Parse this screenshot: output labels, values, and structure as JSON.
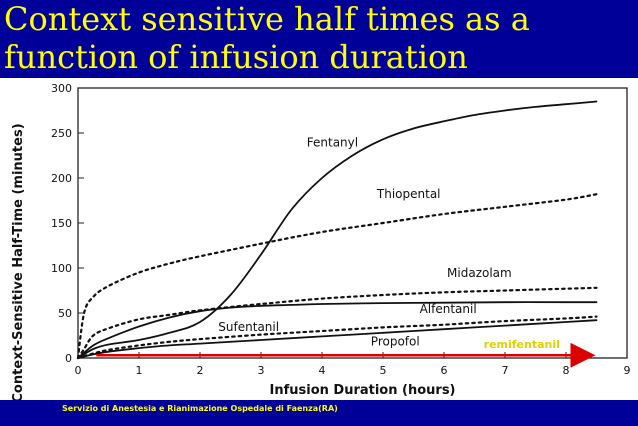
{
  "slide": {
    "title_line1": "Context sensitive half times as a",
    "title_line2": "function of infusion duration",
    "footer": "Servizio di Anestesia e Rianimazione Ospedale di Faenza(RA)",
    "colors": {
      "background": "#000099",
      "title": "#ffff00",
      "footer": "#ffff00",
      "arrow": "#dd0000"
    }
  },
  "chart_data": {
    "type": "line",
    "title": "",
    "xlabel": "Infusion Duration (hours)",
    "ylabel": "Context-Sensitive Half-Time (minutes)",
    "xlim": [
      0,
      9
    ],
    "ylim": [
      0,
      300
    ],
    "xticks": [
      0,
      1,
      2,
      3,
      4,
      5,
      6,
      7,
      8,
      9
    ],
    "yticks": [
      0,
      50,
      100,
      150,
      200,
      250,
      300
    ],
    "grid": false,
    "legend": "none",
    "series": [
      {
        "name": "Fentanyl",
        "style": "solid",
        "label_at": [
          3.75,
          235
        ],
        "points": [
          [
            0,
            0
          ],
          [
            0.25,
            10
          ],
          [
            0.5,
            15
          ],
          [
            1,
            20
          ],
          [
            1.5,
            28
          ],
          [
            2,
            40
          ],
          [
            2.5,
            70
          ],
          [
            3,
            115
          ],
          [
            3.5,
            165
          ],
          [
            4,
            200
          ],
          [
            4.5,
            225
          ],
          [
            5,
            243
          ],
          [
            5.5,
            255
          ],
          [
            6,
            263
          ],
          [
            6.5,
            270
          ],
          [
            7,
            275
          ],
          [
            7.5,
            279
          ],
          [
            8,
            282
          ],
          [
            8.5,
            285
          ]
        ]
      },
      {
        "name": "Thiopental",
        "style": "dotted",
        "label_at": [
          4.9,
          178
        ],
        "points": [
          [
            0,
            0
          ],
          [
            0.1,
            50
          ],
          [
            0.25,
            68
          ],
          [
            0.5,
            80
          ],
          [
            1,
            95
          ],
          [
            1.5,
            105
          ],
          [
            2,
            113
          ],
          [
            3,
            127
          ],
          [
            4,
            140
          ],
          [
            5,
            150
          ],
          [
            6,
            160
          ],
          [
            7,
            168
          ],
          [
            8,
            176
          ],
          [
            8.5,
            182
          ]
        ]
      },
      {
        "name": "Midazolam",
        "style": "dotted",
        "label_at": [
          6.05,
          90
        ],
        "points": [
          [
            0,
            0
          ],
          [
            0.1,
            10
          ],
          [
            0.25,
            25
          ],
          [
            0.5,
            33
          ],
          [
            1,
            43
          ],
          [
            1.5,
            48
          ],
          [
            2,
            53
          ],
          [
            3,
            60
          ],
          [
            4,
            66
          ],
          [
            5,
            70
          ],
          [
            6,
            73
          ],
          [
            7,
            75
          ],
          [
            8,
            77
          ],
          [
            8.5,
            78
          ]
        ]
      },
      {
        "name": "Alfentanil",
        "style": "solid",
        "label_at": [
          5.6,
          50
        ],
        "points": [
          [
            0,
            0
          ],
          [
            0.25,
            14
          ],
          [
            0.5,
            22
          ],
          [
            1,
            35
          ],
          [
            1.5,
            45
          ],
          [
            2,
            52
          ],
          [
            2.5,
            56
          ],
          [
            3,
            58
          ],
          [
            3.5,
            59
          ],
          [
            4,
            60
          ],
          [
            5,
            61
          ],
          [
            6,
            61.5
          ],
          [
            7,
            62
          ],
          [
            8,
            62
          ],
          [
            8.5,
            62
          ]
        ]
      },
      {
        "name": "Sufentanil",
        "style": "dotted",
        "label_at": [
          2.3,
          30
        ],
        "points": [
          [
            0,
            0
          ],
          [
            0.25,
            5
          ],
          [
            0.5,
            9
          ],
          [
            1,
            14
          ],
          [
            1.5,
            18
          ],
          [
            2,
            21
          ],
          [
            3,
            26
          ],
          [
            4,
            30
          ],
          [
            5,
            34
          ],
          [
            6,
            37
          ],
          [
            7,
            41
          ],
          [
            8,
            44
          ],
          [
            8.5,
            46
          ]
        ]
      },
      {
        "name": "Propofol",
        "style": "solid",
        "label_at": [
          4.8,
          14
        ],
        "points": [
          [
            0,
            0
          ],
          [
            0.25,
            4
          ],
          [
            0.5,
            7
          ],
          [
            1,
            11
          ],
          [
            1.5,
            14
          ],
          [
            2,
            16
          ],
          [
            3,
            20
          ],
          [
            4,
            24
          ],
          [
            5,
            28
          ],
          [
            6,
            32
          ],
          [
            7,
            36
          ],
          [
            8,
            40
          ],
          [
            8.5,
            42
          ]
        ]
      }
    ],
    "annotations": [
      {
        "text": "remifentanil",
        "style": "red-arrow",
        "from": [
          0.3,
          3
        ],
        "to": [
          8.4,
          3
        ],
        "label_at": [
          6.65,
          11
        ]
      }
    ]
  }
}
